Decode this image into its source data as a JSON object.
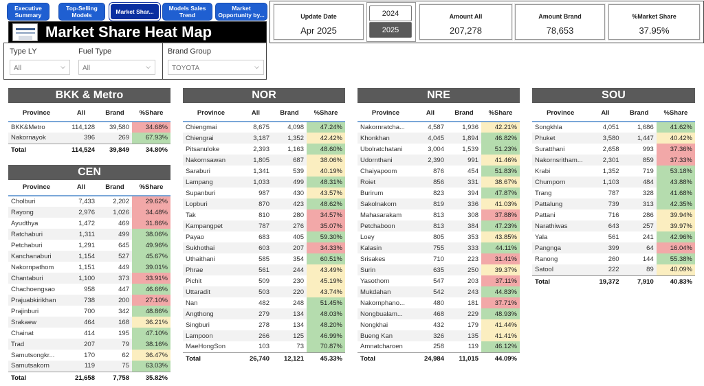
{
  "nav": {
    "tabs": [
      {
        "label": "Executive Summary"
      },
      {
        "label": "Top-Selling Models"
      },
      {
        "label": "Market Shar..."
      },
      {
        "label": "Models Sales Trend"
      },
      {
        "label": "Market Opportunity by..."
      }
    ]
  },
  "header": {
    "title": "Market Share Heat Map"
  },
  "filters": {
    "type_ly": {
      "label": "Type LY",
      "value": "All"
    },
    "fuel_type": {
      "label": "Fuel Type",
      "value": "All"
    },
    "brand_group": {
      "label": "Brand Group",
      "value": "TOYOTA"
    }
  },
  "kpis": {
    "update_date": {
      "label": "Update Date",
      "value": "Apr 2025"
    },
    "year_options": [
      "2024",
      "2025"
    ],
    "year_selected": "2025",
    "amount_all": {
      "label": "Amount All",
      "value": "207,278"
    },
    "amount_brand": {
      "label": "Amount Brand",
      "value": "78,653"
    },
    "market_share": {
      "label": "%Market Share",
      "value": "37.95%"
    }
  },
  "columns": {
    "province": "Province",
    "all": "All",
    "brand": "Brand",
    "share": "%Share"
  },
  "colors": {
    "red": "#f2a8a8",
    "orange": "#f7c8b8",
    "yellow": "#fbeec0",
    "green": "#b5dcae",
    "header": "#5a5a5a",
    "nav": "#1f5fd1"
  },
  "regions": {
    "bkk": {
      "name": "BKK & Metro",
      "rows": [
        {
          "province": "BKK&Metro",
          "all": "114,128",
          "brand": "39,580",
          "share": "34.68%",
          "tone": "red"
        },
        {
          "province": "Nakornayok",
          "all": "396",
          "brand": "269",
          "share": "67.93%",
          "tone": "green"
        }
      ],
      "total": {
        "label": "Total",
        "all": "114,524",
        "brand": "39,849",
        "share": "34.80%"
      }
    },
    "cen": {
      "name": "CEN",
      "rows": [
        {
          "province": "Cholburi",
          "all": "7,433",
          "brand": "2,202",
          "share": "29.62%",
          "tone": "red"
        },
        {
          "province": "Rayong",
          "all": "2,976",
          "brand": "1,026",
          "share": "34.48%",
          "tone": "red"
        },
        {
          "province": "Ayudthya",
          "all": "1,472",
          "brand": "469",
          "share": "31.86%",
          "tone": "red"
        },
        {
          "province": "Ratchaburi",
          "all": "1,311",
          "brand": "499",
          "share": "38.06%",
          "tone": "green"
        },
        {
          "province": "Petchaburi",
          "all": "1,291",
          "brand": "645",
          "share": "49.96%",
          "tone": "green"
        },
        {
          "province": "Kanchanaburi",
          "all": "1,154",
          "brand": "527",
          "share": "45.67%",
          "tone": "green"
        },
        {
          "province": "Nakornpathom",
          "all": "1,151",
          "brand": "449",
          "share": "39.01%",
          "tone": "green"
        },
        {
          "province": "Chantaburi",
          "all": "1,100",
          "brand": "373",
          "share": "33.91%",
          "tone": "red"
        },
        {
          "province": "Chachoengsao",
          "all": "958",
          "brand": "447",
          "share": "46.66%",
          "tone": "green"
        },
        {
          "province": "Prajuabkirikhan",
          "all": "738",
          "brand": "200",
          "share": "27.10%",
          "tone": "red"
        },
        {
          "province": "Prajinburi",
          "all": "700",
          "brand": "342",
          "share": "48.86%",
          "tone": "green"
        },
        {
          "province": "Srakaew",
          "all": "464",
          "brand": "168",
          "share": "36.21%",
          "tone": "yellow"
        },
        {
          "province": "Chainat",
          "all": "414",
          "brand": "195",
          "share": "47.10%",
          "tone": "green"
        },
        {
          "province": "Trad",
          "all": "207",
          "brand": "79",
          "share": "38.16%",
          "tone": "green"
        },
        {
          "province": "Samutsongkr...",
          "all": "170",
          "brand": "62",
          "share": "36.47%",
          "tone": "yellow"
        },
        {
          "province": "Samutsakorn",
          "all": "119",
          "brand": "75",
          "share": "63.03%",
          "tone": "green"
        }
      ],
      "total": {
        "label": "Total",
        "all": "21,658",
        "brand": "7,758",
        "share": "35.82%"
      }
    },
    "nor": {
      "name": "NOR",
      "rows": [
        {
          "province": "Chiengmai",
          "all": "8,675",
          "brand": "4,098",
          "share": "47.24%",
          "tone": "green"
        },
        {
          "province": "Chiengrai",
          "all": "3,187",
          "brand": "1,352",
          "share": "42.42%",
          "tone": "yellow"
        },
        {
          "province": "Pitsanuloke",
          "all": "2,393",
          "brand": "1,163",
          "share": "48.60%",
          "tone": "green"
        },
        {
          "province": "Nakornsawan",
          "all": "1,805",
          "brand": "687",
          "share": "38.06%",
          "tone": "yellow"
        },
        {
          "province": "Saraburi",
          "all": "1,341",
          "brand": "539",
          "share": "40.19%",
          "tone": "yellow"
        },
        {
          "province": "Lampang",
          "all": "1,033",
          "brand": "499",
          "share": "48.31%",
          "tone": "green"
        },
        {
          "province": "Supanburi",
          "all": "987",
          "brand": "430",
          "share": "43.57%",
          "tone": "yellow"
        },
        {
          "province": "Lopburi",
          "all": "870",
          "brand": "423",
          "share": "48.62%",
          "tone": "green"
        },
        {
          "province": "Tak",
          "all": "810",
          "brand": "280",
          "share": "34.57%",
          "tone": "red"
        },
        {
          "province": "Kampangpet",
          "all": "787",
          "brand": "276",
          "share": "35.07%",
          "tone": "red"
        },
        {
          "province": "Payao",
          "all": "683",
          "brand": "405",
          "share": "59.30%",
          "tone": "green"
        },
        {
          "province": "Sukhothai",
          "all": "603",
          "brand": "207",
          "share": "34.33%",
          "tone": "red"
        },
        {
          "province": "Uthaithani",
          "all": "585",
          "brand": "354",
          "share": "60.51%",
          "tone": "green"
        },
        {
          "province": "Phrae",
          "all": "561",
          "brand": "244",
          "share": "43.49%",
          "tone": "yellow"
        },
        {
          "province": "Pichit",
          "all": "509",
          "brand": "230",
          "share": "45.19%",
          "tone": "yellow"
        },
        {
          "province": "Uttaradit",
          "all": "503",
          "brand": "220",
          "share": "43.74%",
          "tone": "yellow"
        },
        {
          "province": "Nan",
          "all": "482",
          "brand": "248",
          "share": "51.45%",
          "tone": "green"
        },
        {
          "province": "Angthong",
          "all": "279",
          "brand": "134",
          "share": "48.03%",
          "tone": "green"
        },
        {
          "province": "Singburi",
          "all": "278",
          "brand": "134",
          "share": "48.20%",
          "tone": "green"
        },
        {
          "province": "Lampoon",
          "all": "266",
          "brand": "125",
          "share": "46.99%",
          "tone": "green"
        },
        {
          "province": "MaeHongSon",
          "all": "103",
          "brand": "73",
          "share": "70.87%",
          "tone": "green"
        }
      ],
      "total": {
        "label": "Total",
        "all": "26,740",
        "brand": "12,121",
        "share": "45.33%"
      }
    },
    "nre": {
      "name": "NRE",
      "rows": [
        {
          "province": "Nakornratcha...",
          "all": "4,587",
          "brand": "1,936",
          "share": "42.21%",
          "tone": "yellow"
        },
        {
          "province": "Khonkhan",
          "all": "4,045",
          "brand": "1,894",
          "share": "46.82%",
          "tone": "green"
        },
        {
          "province": "Ubolratchatani",
          "all": "3,004",
          "brand": "1,539",
          "share": "51.23%",
          "tone": "green"
        },
        {
          "province": "Udornthani",
          "all": "2,390",
          "brand": "991",
          "share": "41.46%",
          "tone": "yellow"
        },
        {
          "province": "Chaiyapoom",
          "all": "876",
          "brand": "454",
          "share": "51.83%",
          "tone": "green"
        },
        {
          "province": "Roiet",
          "all": "856",
          "brand": "331",
          "share": "38.67%",
          "tone": "yellow"
        },
        {
          "province": "Burirum",
          "all": "823",
          "brand": "394",
          "share": "47.87%",
          "tone": "green"
        },
        {
          "province": "Sakolnakorn",
          "all": "819",
          "brand": "336",
          "share": "41.03%",
          "tone": "yellow"
        },
        {
          "province": "Mahasarakam",
          "all": "813",
          "brand": "308",
          "share": "37.88%",
          "tone": "red"
        },
        {
          "province": "Petchaboon",
          "all": "813",
          "brand": "384",
          "share": "47.23%",
          "tone": "green"
        },
        {
          "province": "Loey",
          "all": "805",
          "brand": "353",
          "share": "43.85%",
          "tone": "yellow"
        },
        {
          "province": "Kalasin",
          "all": "755",
          "brand": "333",
          "share": "44.11%",
          "tone": "green"
        },
        {
          "province": "Srisakes",
          "all": "710",
          "brand": "223",
          "share": "31.41%",
          "tone": "red"
        },
        {
          "province": "Surin",
          "all": "635",
          "brand": "250",
          "share": "39.37%",
          "tone": "yellow"
        },
        {
          "province": "Yasothorn",
          "all": "547",
          "brand": "203",
          "share": "37.11%",
          "tone": "red"
        },
        {
          "province": "Mukdahan",
          "all": "542",
          "brand": "243",
          "share": "44.83%",
          "tone": "green"
        },
        {
          "province": "Nakornphano...",
          "all": "480",
          "brand": "181",
          "share": "37.71%",
          "tone": "red"
        },
        {
          "province": "Nongbualam...",
          "all": "468",
          "brand": "229",
          "share": "48.93%",
          "tone": "green"
        },
        {
          "province": "Nongkhai",
          "all": "432",
          "brand": "179",
          "share": "41.44%",
          "tone": "yellow"
        },
        {
          "province": "Bueng Kan",
          "all": "326",
          "brand": "135",
          "share": "41.41%",
          "tone": "yellow"
        },
        {
          "province": "Amnatcharoen",
          "all": "258",
          "brand": "119",
          "share": "46.12%",
          "tone": "green"
        }
      ],
      "total": {
        "label": "Total",
        "all": "24,984",
        "brand": "11,015",
        "share": "44.09%"
      }
    },
    "sou": {
      "name": "SOU",
      "rows": [
        {
          "province": "Songkhla",
          "all": "4,051",
          "brand": "1,686",
          "share": "41.62%",
          "tone": "green"
        },
        {
          "province": "Phuket",
          "all": "3,580",
          "brand": "1,447",
          "share": "40.42%",
          "tone": "yellow"
        },
        {
          "province": "Suratthani",
          "all": "2,658",
          "brand": "993",
          "share": "37.36%",
          "tone": "red"
        },
        {
          "province": "Nakornsritham...",
          "all": "2,301",
          "brand": "859",
          "share": "37.33%",
          "tone": "red"
        },
        {
          "province": "Krabi",
          "all": "1,352",
          "brand": "719",
          "share": "53.18%",
          "tone": "green"
        },
        {
          "province": "Chumporn",
          "all": "1,103",
          "brand": "484",
          "share": "43.88%",
          "tone": "green"
        },
        {
          "province": "Trang",
          "all": "787",
          "brand": "328",
          "share": "41.68%",
          "tone": "green"
        },
        {
          "province": "Pattalung",
          "all": "739",
          "brand": "313",
          "share": "42.35%",
          "tone": "green"
        },
        {
          "province": "Pattani",
          "all": "716",
          "brand": "286",
          "share": "39.94%",
          "tone": "yellow"
        },
        {
          "province": "Narathiwas",
          "all": "643",
          "brand": "257",
          "share": "39.97%",
          "tone": "yellow"
        },
        {
          "province": "Yala",
          "all": "561",
          "brand": "241",
          "share": "42.96%",
          "tone": "green"
        },
        {
          "province": "Pangnga",
          "all": "399",
          "brand": "64",
          "share": "16.04%",
          "tone": "red"
        },
        {
          "province": "Ranong",
          "all": "260",
          "brand": "144",
          "share": "55.38%",
          "tone": "green"
        },
        {
          "province": "Satool",
          "all": "222",
          "brand": "89",
          "share": "40.09%",
          "tone": "yellow"
        }
      ],
      "total": {
        "label": "Total",
        "all": "19,372",
        "brand": "7,910",
        "share": "40.83%"
      }
    }
  }
}
